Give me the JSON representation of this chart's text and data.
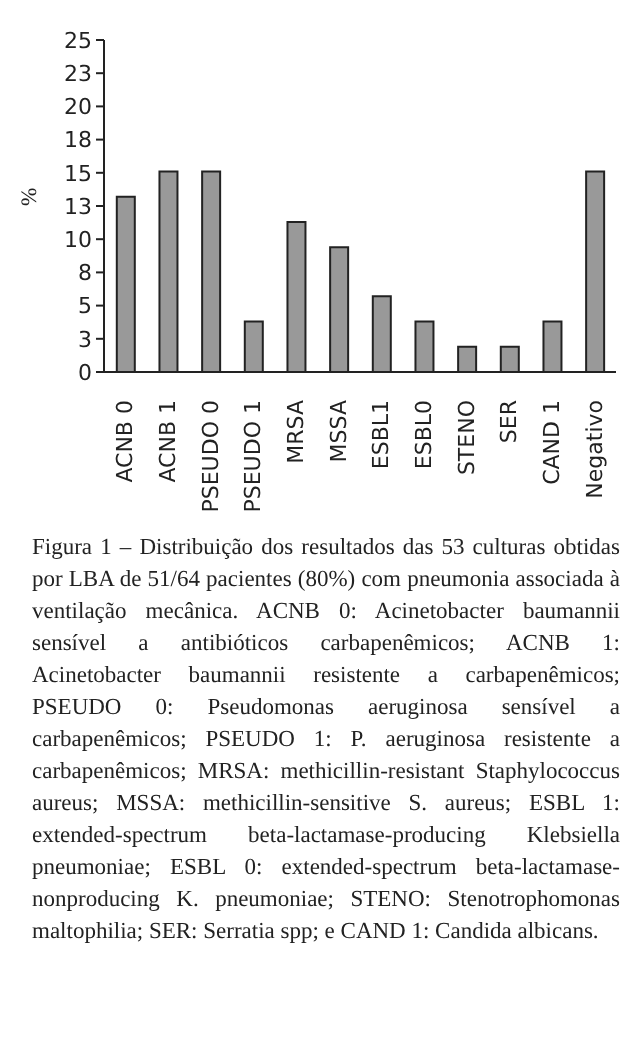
{
  "chart_data": {
    "type": "bar",
    "ylabel": "%",
    "categories": [
      "ACNB 0",
      "ACNB 1",
      "PSEUDO 0",
      "PSEUDO 1",
      "MRSA",
      "MSSA",
      "ESBL1",
      "ESBL0",
      "STENO",
      "SER",
      "CAND 1",
      "Negativo"
    ],
    "values": [
      13.2,
      15.1,
      15.1,
      3.8,
      11.3,
      9.4,
      5.7,
      3.8,
      1.9,
      1.9,
      3.8,
      15.1
    ],
    "color": "#999999",
    "ylim": [
      0,
      25
    ],
    "yticks": [
      0,
      {
        "value": 2.5,
        "label": "3"
      },
      5,
      {
        "value": 7.5,
        "label": "8"
      },
      10,
      {
        "value": 12.5,
        "label": "13"
      },
      15,
      {
        "value": 17.5,
        "label": "18"
      },
      20,
      {
        "value": 22.5,
        "label": "23"
      },
      25
    ],
    "grid": false,
    "legend": false,
    "annotations": [
      "Figura 1 – Distribuição dos resultados das 53 culturas obtidas por LBA de 51/64 pacientes (80%) com pneumonia associada à ventilação mecânica. ACNB 0: Acinetobacter baumannii sensível a antibióticos carbapenêmicos; ACNB 1: Acinetobacter baumannii resistente a carbapenêmicos; PSEUDO 0: Pseudomonas aeruginosa sensível a carbapenêmicos; PSEUDO 1: P. aeruginosa resistente a carbapenêmicos; MRSA: methicillin-resistant Staphylococcus aureus; MSSA: methicillin-sensitive S. aureus; ESBL 1: extended-spectrum beta-lactamase-producing Klebsiella pneumoniae; ESBL 0: extended-spectrum beta-lactamase-nonproducing K. pneumoniae; STENO: Stenotrophomonas maltophilia; SER: Serratia spp; e CAND 1: Candida albicans."
    ]
  }
}
